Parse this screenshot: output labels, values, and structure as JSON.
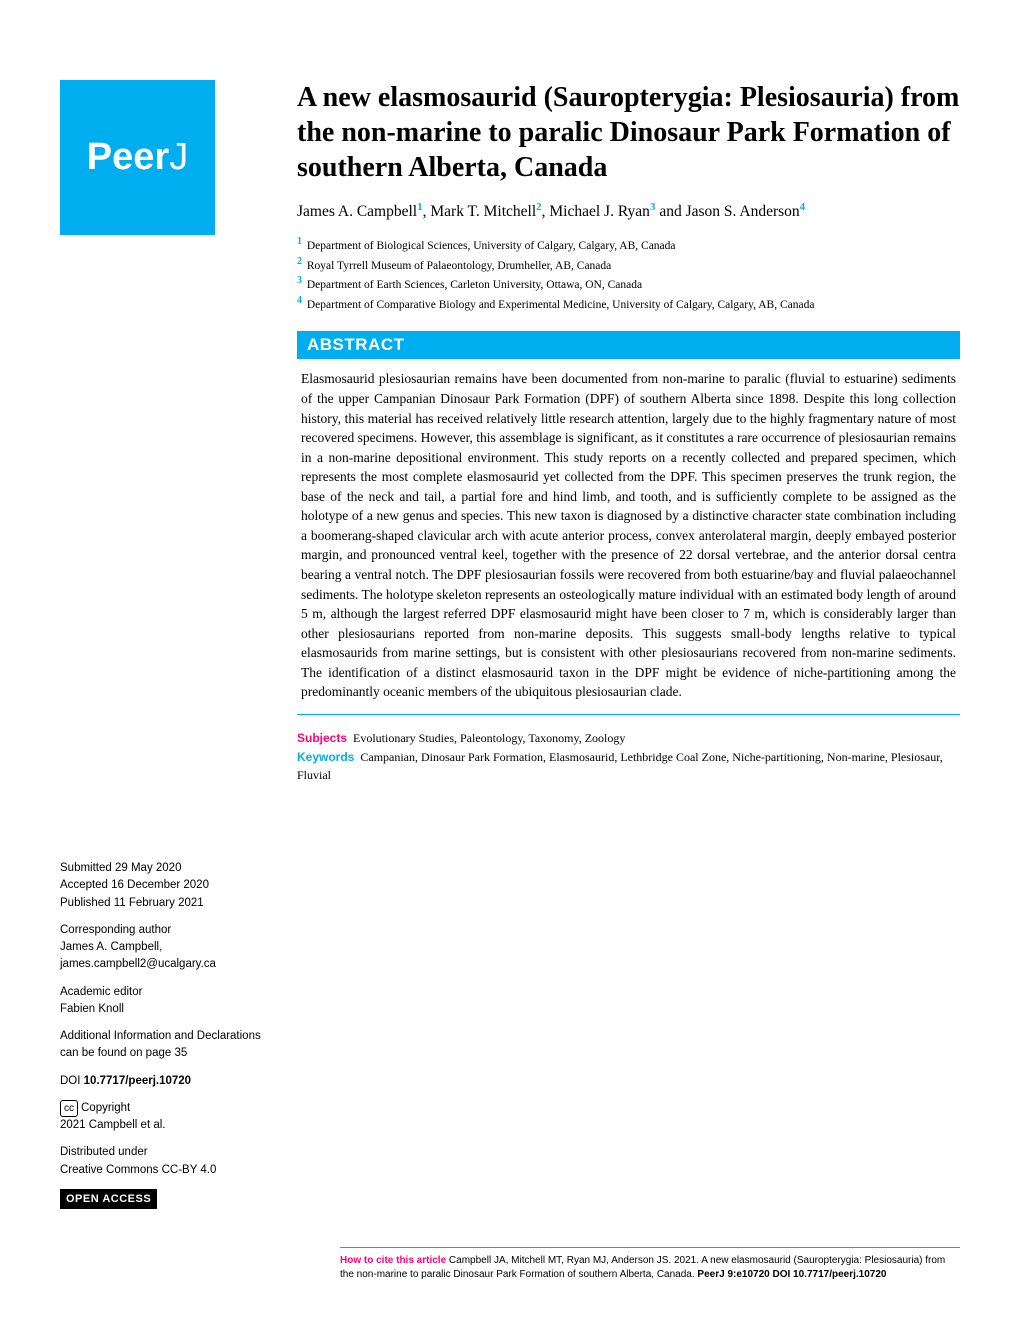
{
  "logo": {
    "text_bold": "Peer",
    "text_light": "J",
    "bg_color": "#00aeef"
  },
  "title": "A new elasmosaurid (Sauropterygia: Plesiosauria) from the non-marine to paralic Dinosaur Park Formation of southern Alberta, Canada",
  "authors": [
    {
      "name": "James A. Campbell",
      "aff": "1"
    },
    {
      "name": "Mark T. Mitchell",
      "aff": "2"
    },
    {
      "name": "Michael J. Ryan",
      "aff": "3"
    },
    {
      "name": "Jason S. Anderson",
      "aff": "4"
    }
  ],
  "author_and": " and ",
  "affiliations": [
    {
      "num": "1",
      "text": "Department of Biological Sciences, University of Calgary, Calgary, AB, Canada"
    },
    {
      "num": "2",
      "text": "Royal Tyrrell Museum of Palaeontology, Drumheller, AB, Canada"
    },
    {
      "num": "3",
      "text": "Department of Earth Sciences, Carleton University, Ottawa, ON, Canada"
    },
    {
      "num": "4",
      "text": "Department of Comparative Biology and Experimental Medicine, University of Calgary, Calgary, AB, Canada"
    }
  ],
  "abstract": {
    "header": "ABSTRACT",
    "body": "Elasmosaurid plesiosaurian remains have been documented from non-marine to paralic (fluvial to estuarine) sediments of the upper Campanian Dinosaur Park Formation (DPF) of southern Alberta since 1898. Despite this long collection history, this material has received relatively little research attention, largely due to the highly fragmentary nature of most recovered specimens. However, this assemblage is significant, as it constitutes a rare occurrence of plesiosaurian remains in a non-marine depositional environment. This study reports on a recently collected and prepared specimen, which represents the most complete elasmosaurid yet collected from the DPF. This specimen preserves the trunk region, the base of the neck and tail, a partial fore and hind limb, and tooth, and is sufficiently complete to be assigned as the holotype of a new genus and species. This new taxon is diagnosed by a distinctive character state combination including a boomerang-shaped clavicular arch with acute anterior process, convex anterolateral margin, deeply embayed posterior margin, and pronounced ventral keel, together with the presence of 22 dorsal vertebrae, and the anterior dorsal centra bearing a ventral notch. The DPF plesiosaurian fossils were recovered from both estuarine/bay and fluvial palaeochannel sediments. The holotype skeleton represents an osteologically mature individual with an estimated body length of around 5 m, although the largest referred DPF elasmosaurid might have been closer to 7 m, which is considerably larger than other plesiosaurians reported from non-marine deposits. This suggests small-body lengths relative to typical elasmosaurids from marine settings, but is consistent with other plesiosaurians recovered from non-marine sediments. The identification of a distinct elasmosaurid taxon in the DPF might be evidence of niche-partitioning among the predominantly oceanic members of the ubiquitous plesiosaurian clade."
  },
  "subjects": {
    "label": "Subjects",
    "text": "Evolutionary Studies, Paleontology, Taxonomy, Zoology"
  },
  "keywords": {
    "label": "Keywords",
    "text": "Campanian, Dinosaur Park Formation, Elasmosaurid, Lethbridge Coal Zone, Niche-partitioning, Non-marine, Plesiosaur, Fluvial"
  },
  "sidebar": {
    "submitted_label": "Submitted",
    "submitted_date": "29 May 2020",
    "accepted_label": "Accepted",
    "accepted_date": "16 December 2020",
    "published_label": "Published",
    "published_date": "11 February 2021",
    "corresponding_label": "Corresponding author",
    "corresponding_name": "James A. Campbell,",
    "corresponding_email": "james.campbell2@ucalgary.ca",
    "academic_editor_label": "Academic editor",
    "academic_editor": "Fabien Knoll",
    "additional_info": "Additional Information and Declarations can be found on page 35",
    "doi_label": "DOI",
    "doi": "10.7717/peerj.10720",
    "copyright_label": "Copyright",
    "copyright": "2021 Campbell et al.",
    "distributed_label": "Distributed under",
    "distributed": "Creative Commons CC-BY 4.0",
    "open_access": "OPEN ACCESS"
  },
  "citation": {
    "how_to": "How to cite this article",
    "text": "Campbell JA, Mitchell MT, Ryan MJ, Anderson JS. 2021. A new elasmosaurid (Sauropterygia: Plesiosauria) from the non-marine to paralic Dinosaur Park Formation of southern Alberta, Canada. ",
    "journal": "PeerJ 9:e10720 DOI 10.7717/peerj.10720"
  }
}
